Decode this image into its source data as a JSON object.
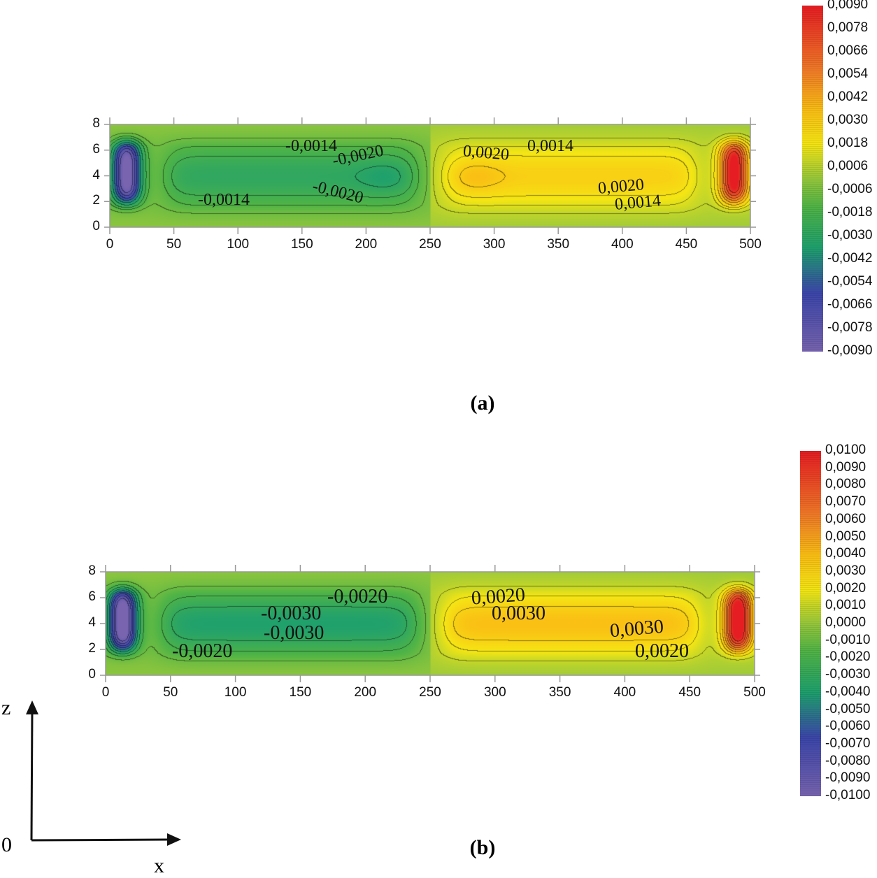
{
  "chart_data": [
    {
      "type": "heatmap",
      "caption": "(a)",
      "x_ticks": [
        "0",
        "50",
        "100",
        "150",
        "200",
        "250",
        "300",
        "350",
        "400",
        "450",
        "500"
      ],
      "y_ticks": [
        "0",
        "2",
        "4",
        "6",
        "8"
      ],
      "xlim": [
        0,
        500
      ],
      "ylim": [
        0,
        8
      ],
      "colorbar": {
        "range": [
          -0.009,
          0.009
        ],
        "ticks": [
          "0,0090",
          "0,0078",
          "0,0066",
          "0,0054",
          "0,0042",
          "0,0030",
          "0,0018",
          "0,0006",
          "-0,0006",
          "-0,0018",
          "-0,0030",
          "-0,0042",
          "-0,0054",
          "-0,0066",
          "-0,0078",
          "-0,0090"
        ]
      },
      "contour_labels": [
        "-0,0014",
        "-0,0020",
        "-0,0020",
        "-0,0014",
        "0,0020",
        "0,0014",
        "0,0020",
        "0,0014"
      ],
      "extrema": [
        {
          "x": 12,
          "z": 4.3,
          "value": -0.009
        },
        {
          "x": 488,
          "z": 4.3,
          "value": 0.009
        }
      ]
    },
    {
      "type": "heatmap",
      "caption": "(b)",
      "x_ticks": [
        "0",
        "50",
        "100",
        "150",
        "200",
        "250",
        "300",
        "350",
        "400",
        "450",
        "500"
      ],
      "y_ticks": [
        "0",
        "2",
        "4",
        "6",
        "8"
      ],
      "xlim": [
        0,
        500
      ],
      "ylim": [
        0,
        8
      ],
      "colorbar": {
        "range": [
          -0.01,
          0.01
        ],
        "ticks": [
          "0,0100",
          "0,0090",
          "0,0080",
          "0,0070",
          "0,0060",
          "0,0050",
          "0,0040",
          "0,0030",
          "0,0020",
          "0,0010",
          "0,0000",
          "-0,0010",
          "-0,0020",
          "-0,0030",
          "-0,0040",
          "-0,0050",
          "-0,0060",
          "-0,0070",
          "-0,0080",
          "-0,0090",
          "-0,0100"
        ]
      },
      "contour_labels": [
        "-0,0020",
        "-0,0030",
        "-0,0030",
        "-0,0020",
        "0,0020",
        "0,0030",
        "0,0030",
        "0,0020"
      ],
      "extrema": [
        {
          "x": 15,
          "z": 4.3,
          "value": -0.01
        },
        {
          "x": 485,
          "z": 4.3,
          "value": 0.01
        }
      ]
    }
  ],
  "axes_diagram": {
    "z_label": "z",
    "origin_label": "0",
    "x_label": "x"
  }
}
